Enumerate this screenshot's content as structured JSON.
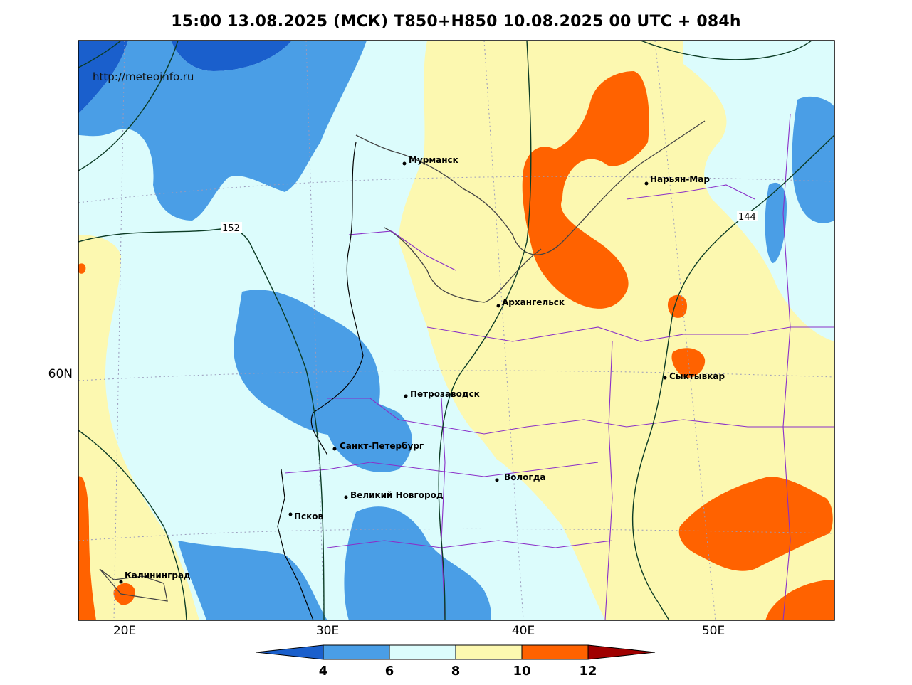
{
  "title": "15:00 13.08.2025 (МСК) T850+H850 10.08.2025 00 UTC + 084h",
  "source": "http://meteoinfo.ru",
  "axes": {
    "x_ticks": [
      "20E",
      "30E",
      "40E",
      "50E"
    ],
    "y_ticks": [
      "60N"
    ]
  },
  "isolines": [
    {
      "label": "152"
    },
    {
      "label": "144"
    }
  ],
  "cities": [
    {
      "name": "Мурманск"
    },
    {
      "name": "Нарьян-Мар"
    },
    {
      "name": "Архангельск"
    },
    {
      "name": "Сыктывкар"
    },
    {
      "name": "Петрозаводск"
    },
    {
      "name": "Санкт-Петербург"
    },
    {
      "name": "Вологда"
    },
    {
      "name": "Великий Новгород"
    },
    {
      "name": "Псков"
    },
    {
      "name": "Калининград"
    }
  ],
  "colorbar": {
    "labels": [
      "4",
      "6",
      "8",
      "10",
      "12"
    ],
    "colors": {
      "below_4": "#1a5fcc",
      "4_6": "#4a9ee6",
      "6_8": "#dcfcfc",
      "8_10": "#fcf8b0",
      "10_12": "#ff6200",
      "above_12": "#a00000"
    }
  }
}
